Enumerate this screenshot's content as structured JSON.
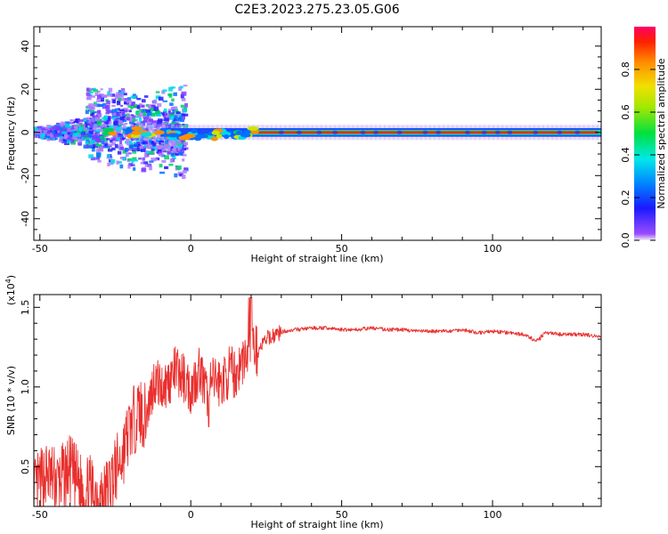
{
  "title": "C2E3.2023.275.23.05.G06",
  "chart_data": [
    {
      "type": "heatmap",
      "xlabel": "Height of straight line (km)",
      "ylabel": "Frequency (Hz)",
      "xlim": [
        -52,
        136
      ],
      "ylim": [
        -50,
        49
      ],
      "xticks": [
        -50,
        0,
        50,
        100
      ],
      "yticks": [
        -40,
        -20,
        0,
        20,
        40
      ],
      "colorbar": {
        "label": "Normalized spectral amplitude",
        "range": [
          0,
          1
        ],
        "ticks": [
          0.0,
          0.2,
          0.4,
          0.6,
          0.8
        ]
      }
    },
    {
      "type": "line",
      "xlabel": "Height of straight line (km)",
      "ylabel": "SNR (10 * v/v)",
      "exponent_label": "(x10",
      "exponent_sup": "4",
      "xlim": [
        -52,
        136
      ],
      "ylim": [
        0.25,
        1.58
      ],
      "xticks": [
        -50,
        0,
        50,
        100
      ],
      "yticks": [
        0.5,
        1.0,
        1.5
      ],
      "ytick_labels": [
        "0.5",
        "1.0",
        "1.5"
      ],
      "color": "#e8302e",
      "series": [
        {
          "x": [
            -52,
            -48,
            -44,
            -40,
            -36,
            -32,
            -29,
            -26,
            -23,
            -20,
            -17,
            -15,
            -12,
            -10,
            -8,
            -5,
            -2,
            0,
            3,
            5,
            8,
            10,
            13,
            15,
            18,
            20,
            22,
            25,
            28,
            31,
            35,
            40,
            45,
            50,
            55,
            60,
            65,
            70,
            75,
            80,
            85,
            90,
            95,
            100,
            105,
            110,
            114,
            118,
            122,
            126,
            130,
            134,
            136
          ],
          "y": [
            0.33,
            0.45,
            0.4,
            0.48,
            0.36,
            0.35,
            0.3,
            0.43,
            0.55,
            0.75,
            0.85,
            0.8,
            1.05,
            1.0,
            1.02,
            1.1,
            1.05,
            0.98,
            1.12,
            0.95,
            1.05,
            1.02,
            1.1,
            1.08,
            1.2,
            1.28,
            1.22,
            1.3,
            1.33,
            1.35,
            1.36,
            1.37,
            1.37,
            1.36,
            1.36,
            1.37,
            1.36,
            1.36,
            1.35,
            1.35,
            1.35,
            1.36,
            1.34,
            1.35,
            1.34,
            1.33,
            1.3,
            1.34,
            1.33,
            1.33,
            1.33,
            1.32,
            1.32
          ]
        }
      ]
    }
  ]
}
